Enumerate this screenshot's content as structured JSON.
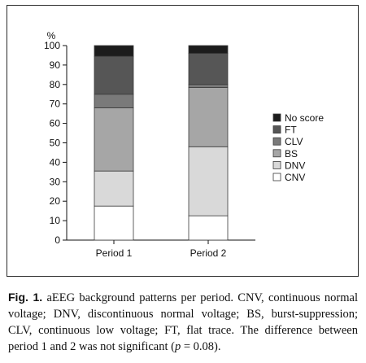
{
  "chart_data": {
    "type": "bar",
    "stacked": true,
    "ylabel": "%",
    "ylim": [
      0,
      100
    ],
    "yticks": [
      0,
      10,
      20,
      30,
      40,
      50,
      60,
      70,
      80,
      90,
      100
    ],
    "categories": [
      "Period 1",
      "Period 2"
    ],
    "series": [
      {
        "name": "CNV",
        "color": "#ffffff",
        "values": [
          17.5,
          12.5
        ]
      },
      {
        "name": "DNV",
        "color": "#d9d9d9",
        "values": [
          18,
          35.5
        ]
      },
      {
        "name": "BS",
        "color": "#a6a6a6",
        "values": [
          32.5,
          30.5
        ]
      },
      {
        "name": "CLV",
        "color": "#7a7a7a",
        "values": [
          7,
          1.5
        ]
      },
      {
        "name": "FT",
        "color": "#565656",
        "values": [
          19.5,
          16
        ]
      },
      {
        "name": "No score",
        "color": "#1c1c1c",
        "values": [
          5.5,
          4
        ]
      }
    ],
    "legend_placement": "right",
    "grid": false
  },
  "caption": {
    "label": "Fig. 1.",
    "text_before": " aEEG background patterns per period. CNV, continuous normal voltage; DNV, discontinuous normal voltage; BS, burst-suppression; CLV, continuous low voltage; FT, flat trace. The difference between period 1 and 2 was not significant (",
    "p_symbol": "p",
    "text_after": " = 0.08)."
  }
}
